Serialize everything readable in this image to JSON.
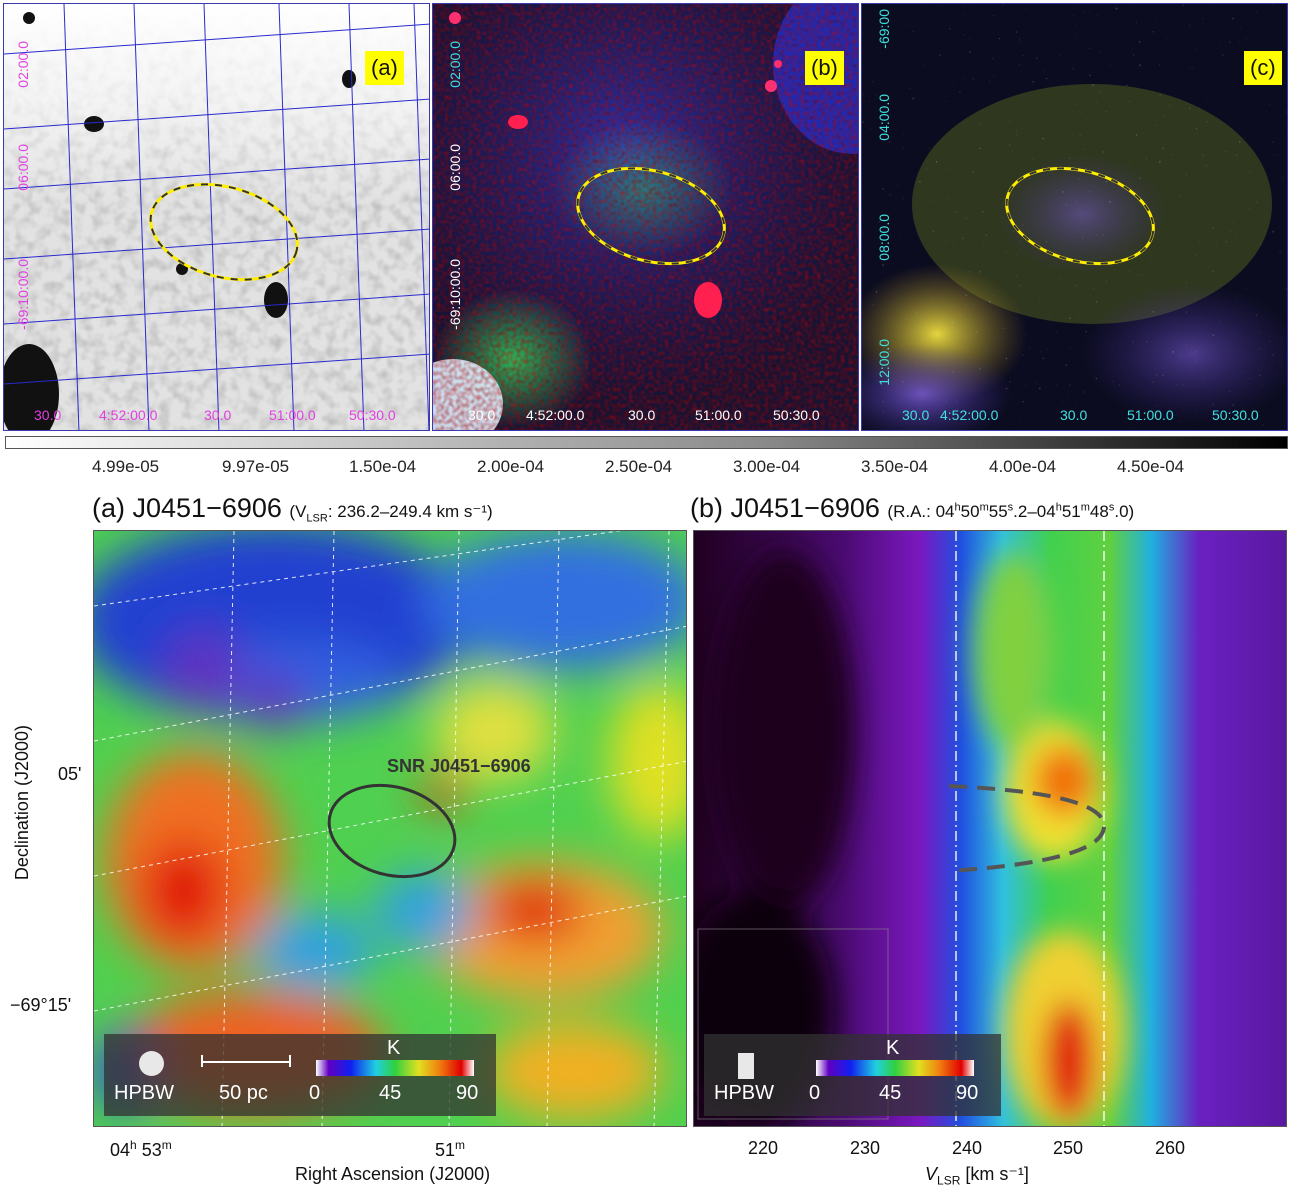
{
  "top_panels": {
    "a": {
      "tag": "(a)",
      "dec_labels": [
        "02:00.0",
        "06:00.0",
        "-69:10:00.0"
      ],
      "ra_labels": [
        "30.0",
        "4:52:00.0",
        "30.0",
        "51:00.0",
        "50:30.0"
      ]
    },
    "b": {
      "tag": "(b)",
      "dec_labels": [
        "02:00.0",
        "06:00.0",
        "-69:10:00.0"
      ],
      "ra_labels": [
        "30.0",
        "4:52:00.0",
        "30.0",
        "51:00.0",
        "50:30.0"
      ]
    },
    "c": {
      "tag": "(c)",
      "dec_labels": [
        "-69:00",
        "04:00.0",
        "08:00.0",
        "12:00.0"
      ],
      "ra_labels": [
        "30.0",
        "4:52:00.0",
        "30.0",
        "51:00.0",
        "50:30.0"
      ]
    }
  },
  "colorbar_ticks": [
    "4.99e-05",
    "9.97e-05",
    "1.50e-04",
    "2.00e-04",
    "2.50e-04",
    "3.00e-04",
    "3.50e-04",
    "4.00e-04",
    "4.50e-04"
  ],
  "bottom_left": {
    "title_main": "(a) J0451−6906",
    "title_sub": "(V",
    "title_sub_lsr": "LSR",
    "title_sub_rest": ": 236.2–249.4 km s⁻¹)",
    "ylabel": "Declination (J2000)",
    "xlabel": "Right Ascension (J2000)",
    "ytick_05": "05'",
    "ytick_15": "−69°15'",
    "xtick_53": "04",
    "xtick_53_h": "h",
    "xtick_53_m": " 53",
    "xtick_53_mm": "m",
    "xtick_51": "51",
    "xtick_51_m": "m",
    "snr_label": "SNR J0451−6906",
    "hpbw": "HPBW",
    "scale": "50 pc",
    "cb_unit": "K",
    "cb_ticks": [
      "0",
      "45",
      "90"
    ]
  },
  "bottom_right": {
    "title_main": "(b) J0451−6906",
    "title_sub": "(R.A.: 04",
    "title_sub_h": "h",
    "title_sub_50": "50",
    "title_sub_m": "m",
    "title_sub_55": "55",
    "title_sub_s": "s",
    "title_sub_2": ".2–04",
    "title_sub_h2": "h",
    "title_sub_51": "51",
    "title_sub_m2": "m",
    "title_sub_48": "48",
    "title_sub_s2": "s",
    "title_sub_0": ".0)",
    "xlabel_v": "V",
    "xlabel_lsr": "LSR",
    "xlabel_rest": " [km s⁻¹]",
    "xticks": [
      "220",
      "230",
      "240",
      "250",
      "260"
    ],
    "hpbw": "HPBW",
    "cb_unit": "K",
    "cb_ticks": [
      "0",
      "45",
      "90"
    ]
  },
  "colors": {
    "ellipse_yellow": "#ffee00",
    "ellipse_dark": "#333333",
    "grid_blue": "#2a2ad0"
  }
}
